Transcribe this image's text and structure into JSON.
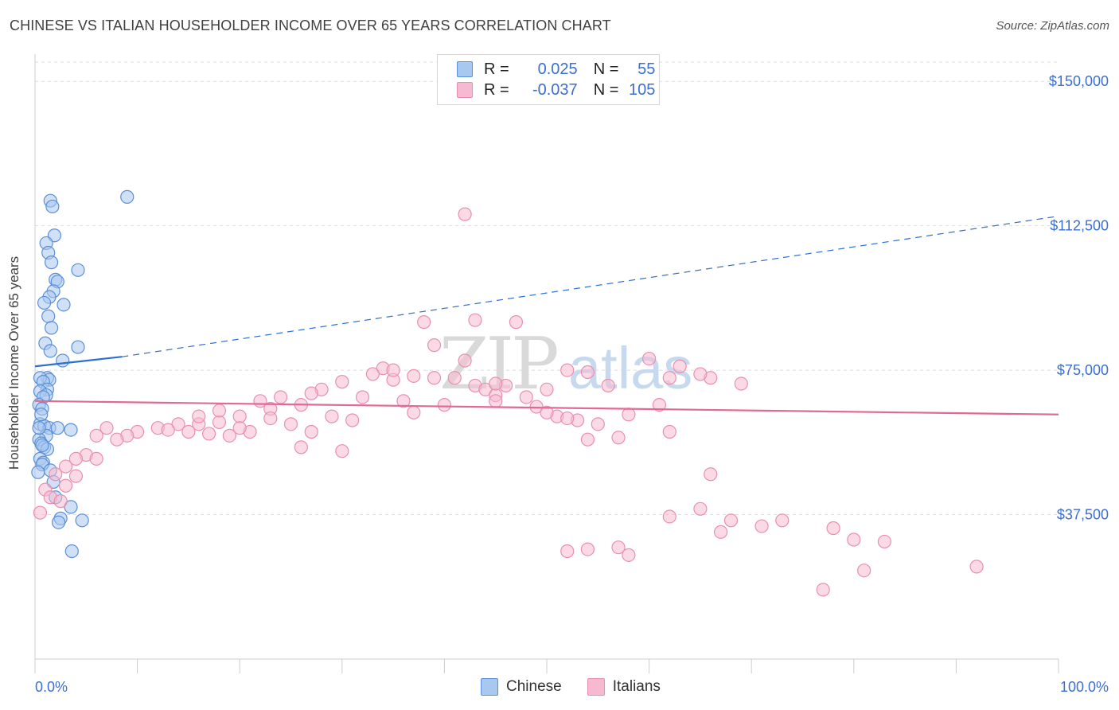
{
  "title": "CHINESE VS ITALIAN HOUSEHOLDER INCOME OVER 65 YEARS CORRELATION CHART",
  "source": "Source: ZipAtlas.com",
  "watermark": {
    "zip": "ZIP",
    "atlas": "atlas"
  },
  "colors": {
    "chinese_fill": "#a9c8f0",
    "chinese_stroke": "#5b8fd8",
    "chinese_line": "#2f6fd0",
    "italian_fill": "#f7b9cf",
    "italian_stroke": "#e890b0",
    "italian_line": "#e06a95",
    "tick_label": "#3b6fd0",
    "grid": "#dddddd"
  },
  "legend": {
    "rows": [
      {
        "r_label": "R =",
        "r_value": "0.025",
        "n_label": "N =",
        "n_value": "55"
      },
      {
        "r_label": "R =",
        "r_value": "-0.037",
        "n_label": "N =",
        "n_value": "105"
      }
    ]
  },
  "chart_data": {
    "type": "scatter",
    "title": "CHINESE VS ITALIAN HOUSEHOLDER INCOME OVER 65 YEARS CORRELATION CHART",
    "xlabel": "",
    "ylabel": "Householder Income Over 65 years",
    "xlim": [
      0,
      100
    ],
    "ylim": [
      0,
      155000
    ],
    "x_tick_labels": [
      "0.0%",
      "100.0%"
    ],
    "y_ticks": [
      37500,
      75000,
      112500,
      150000
    ],
    "y_tick_labels": [
      "$37,500",
      "$75,000",
      "$112,500",
      "$150,000"
    ],
    "grid": true,
    "legend_position": "top-center",
    "series": [
      {
        "name": "Chinese",
        "points": [
          [
            1.5,
            119000
          ],
          [
            9,
            120000
          ],
          [
            1.7,
            117500
          ],
          [
            1.9,
            110000
          ],
          [
            1.1,
            108000
          ],
          [
            1.3,
            105500
          ],
          [
            1.6,
            103000
          ],
          [
            4.2,
            101000
          ],
          [
            2,
            98500
          ],
          [
            2.2,
            98000
          ],
          [
            1.8,
            95500
          ],
          [
            1.4,
            94000
          ],
          [
            0.9,
            92500
          ],
          [
            2.8,
            92000
          ],
          [
            1.3,
            89000
          ],
          [
            1.6,
            86000
          ],
          [
            1,
            82000
          ],
          [
            4.2,
            81000
          ],
          [
            1.5,
            80000
          ],
          [
            2.7,
            77500
          ],
          [
            1.2,
            73000
          ],
          [
            1.4,
            72500
          ],
          [
            0.5,
            73000
          ],
          [
            0.8,
            72000
          ],
          [
            1.2,
            70000
          ],
          [
            0.5,
            69500
          ],
          [
            1.1,
            68500
          ],
          [
            0.8,
            68000
          ],
          [
            0.4,
            66000
          ],
          [
            0.7,
            65000
          ],
          [
            0.5,
            61000
          ],
          [
            0.9,
            60500
          ],
          [
            1.4,
            60000
          ],
          [
            2.2,
            60000
          ],
          [
            3.5,
            59500
          ],
          [
            1.1,
            58000
          ],
          [
            0.4,
            57000
          ],
          [
            0.6,
            56000
          ],
          [
            0.9,
            55000
          ],
          [
            1.2,
            54500
          ],
          [
            0.7,
            55500
          ],
          [
            0.5,
            52000
          ],
          [
            0.8,
            51000
          ],
          [
            0.7,
            50500
          ],
          [
            1.5,
            49000
          ],
          [
            0.3,
            48500
          ],
          [
            1.8,
            46000
          ],
          [
            2,
            42000
          ],
          [
            3.5,
            39500
          ],
          [
            2.5,
            36500
          ],
          [
            4.6,
            36000
          ],
          [
            2.3,
            35500
          ],
          [
            3.6,
            28000
          ],
          [
            0.4,
            60000
          ],
          [
            0.6,
            63500
          ]
        ]
      },
      {
        "name": "Italians",
        "points": [
          [
            42,
            115500
          ],
          [
            38,
            87500
          ],
          [
            43,
            88000
          ],
          [
            47,
            87500
          ],
          [
            39,
            81500
          ],
          [
            34,
            75500
          ],
          [
            42,
            77500
          ],
          [
            33,
            74000
          ],
          [
            35,
            72500
          ],
          [
            37,
            73500
          ],
          [
            39,
            73000
          ],
          [
            41,
            73000
          ],
          [
            43,
            71000
          ],
          [
            46,
            71000
          ],
          [
            48,
            68000
          ],
          [
            50,
            70000
          ],
          [
            52,
            75000
          ],
          [
            54,
            74500
          ],
          [
            60,
            78000
          ],
          [
            63,
            76000
          ],
          [
            66,
            73000
          ],
          [
            56,
            71000
          ],
          [
            62,
            73000
          ],
          [
            65,
            74000
          ],
          [
            69,
            71500
          ],
          [
            28,
            70000
          ],
          [
            30,
            72000
          ],
          [
            32,
            68000
          ],
          [
            36,
            67000
          ],
          [
            40,
            66000
          ],
          [
            44,
            70000
          ],
          [
            45,
            68500
          ],
          [
            49,
            65500
          ],
          [
            51,
            63000
          ],
          [
            53,
            62000
          ],
          [
            55,
            61000
          ],
          [
            58,
            63500
          ],
          [
            61,
            66000
          ],
          [
            24,
            68000
          ],
          [
            26,
            66000
          ],
          [
            27,
            69000
          ],
          [
            29,
            63000
          ],
          [
            31,
            62000
          ],
          [
            22,
            67000
          ],
          [
            20,
            63000
          ],
          [
            23,
            65000
          ],
          [
            18,
            61500
          ],
          [
            16,
            61000
          ],
          [
            25,
            61000
          ],
          [
            19,
            58000
          ],
          [
            21,
            59000
          ],
          [
            27,
            59000
          ],
          [
            26,
            55000
          ],
          [
            30,
            54000
          ],
          [
            14,
            61000
          ],
          [
            15,
            59000
          ],
          [
            12,
            60000
          ],
          [
            13,
            59500
          ],
          [
            17,
            58500
          ],
          [
            10,
            59000
          ],
          [
            9,
            58000
          ],
          [
            8,
            57000
          ],
          [
            7,
            60000
          ],
          [
            6,
            58000
          ],
          [
            5,
            53000
          ],
          [
            6,
            52000
          ],
          [
            4,
            52000
          ],
          [
            3,
            50000
          ],
          [
            2,
            48000
          ],
          [
            1,
            44000
          ],
          [
            0.5,
            38000
          ],
          [
            1.5,
            42000
          ],
          [
            2.5,
            41000
          ],
          [
            3,
            45000
          ],
          [
            4,
            47500
          ],
          [
            16,
            63000
          ],
          [
            20,
            60000
          ],
          [
            18,
            64500
          ],
          [
            23,
            62500
          ],
          [
            35,
            75000
          ],
          [
            37,
            64000
          ],
          [
            45,
            71500
          ],
          [
            52,
            62500
          ],
          [
            54,
            57000
          ],
          [
            57,
            57500
          ],
          [
            62,
            59000
          ],
          [
            66,
            48000
          ],
          [
            62,
            37000
          ],
          [
            65,
            39000
          ],
          [
            68,
            36000
          ],
          [
            71,
            34500
          ],
          [
            73,
            36000
          ],
          [
            78,
            34000
          ],
          [
            80,
            31000
          ],
          [
            83,
            30500
          ],
          [
            57,
            29000
          ],
          [
            67,
            33000
          ],
          [
            52,
            28000
          ],
          [
            54,
            28500
          ],
          [
            58,
            27000
          ],
          [
            81,
            23000
          ],
          [
            92,
            24000
          ],
          [
            77,
            18000
          ],
          [
            50,
            64000
          ],
          [
            45,
            67000
          ]
        ]
      }
    ],
    "trend_lines": [
      {
        "series": "Chinese",
        "solid": [
          [
            0,
            76000
          ],
          [
            8.5,
            78500
          ]
        ],
        "dashed": [
          [
            8.5,
            78500
          ],
          [
            100,
            115000
          ]
        ]
      },
      {
        "series": "Italians",
        "solid": [
          [
            0,
            67000
          ],
          [
            100,
            63500
          ]
        ]
      }
    ]
  }
}
